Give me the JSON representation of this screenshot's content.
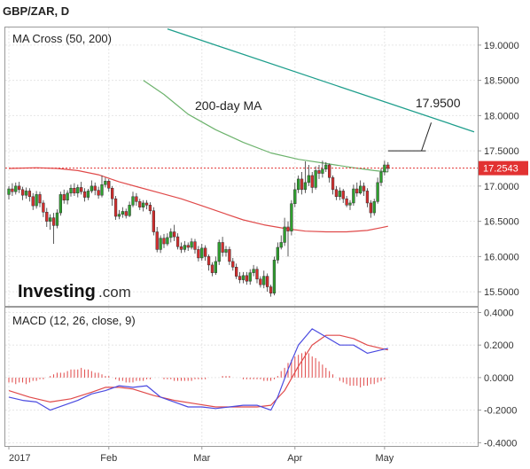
{
  "symbol": "GBP/ZAR, D",
  "logo": {
    "brand": "Investing",
    "suffix": ".com"
  },
  "colors": {
    "up": "#2ea02e",
    "down": "#d62d2d",
    "ma50": "#e04a4a",
    "ma200": "#6db36d",
    "trend": "#1e9e8c",
    "price_tag": "#e23232",
    "macd": "#4a4ae0",
    "signal": "#e04a4a"
  },
  "chart_data": [
    {
      "type": "candlestick",
      "title": "MA Cross (50, 200)",
      "ylim": [
        15.3,
        19.25
      ],
      "yticks": [
        "19.0000",
        "18.5000",
        "18.0000",
        "17.5000",
        "17.0000",
        "16.5000",
        "16.0000",
        "15.5000"
      ],
      "ytick_values": [
        19.0,
        18.5,
        18.0,
        17.5,
        17.0,
        16.5,
        16.0,
        15.5
      ],
      "x_range": [
        0,
        135
      ],
      "xticks": [
        {
          "label": "2017",
          "x": 0
        },
        {
          "label": "Feb",
          "x": 29
        },
        {
          "label": "Mar",
          "x": 56
        },
        {
          "label": "Apr",
          "x": 83
        },
        {
          "label": "May",
          "x": 109
        }
      ],
      "candles": [
        [
          16.88,
          16.96,
          17.0,
          16.81
        ],
        [
          16.96,
          16.92,
          17.04,
          16.86
        ],
        [
          16.92,
          17.0,
          17.05,
          16.88
        ],
        [
          17.0,
          16.95,
          17.06,
          16.9
        ],
        [
          16.95,
          16.87,
          16.99,
          16.8
        ],
        [
          16.87,
          16.93,
          16.98,
          16.82
        ],
        [
          16.93,
          16.85,
          16.97,
          16.78
        ],
        [
          16.85,
          16.72,
          16.9,
          16.66
        ],
        [
          16.72,
          16.88,
          16.93,
          16.68
        ],
        [
          16.88,
          16.76,
          16.92,
          16.7
        ],
        [
          16.76,
          16.63,
          16.8,
          16.56
        ],
        [
          16.63,
          16.5,
          16.69,
          16.42
        ],
        [
          16.5,
          16.55,
          16.6,
          16.38
        ],
        [
          16.55,
          16.44,
          16.62,
          16.18
        ],
        [
          16.44,
          16.62,
          16.67,
          16.4
        ],
        [
          16.62,
          16.88,
          16.92,
          16.58
        ],
        [
          16.88,
          16.8,
          16.95,
          16.75
        ],
        [
          16.8,
          16.9,
          16.94,
          16.74
        ],
        [
          16.9,
          16.97,
          17.02,
          16.85
        ],
        [
          16.97,
          16.9,
          17.04,
          16.86
        ],
        [
          16.9,
          16.98,
          17.02,
          16.84
        ],
        [
          16.98,
          16.92,
          17.06,
          16.88
        ],
        [
          16.92,
          16.84,
          16.97,
          16.78
        ],
        [
          16.84,
          16.93,
          16.96,
          16.8
        ],
        [
          16.93,
          17.0,
          17.08,
          16.9
        ],
        [
          17.0,
          16.94,
          17.05,
          16.87
        ],
        [
          16.94,
          16.87,
          16.99,
          16.82
        ],
        [
          16.87,
          17.02,
          17.15,
          16.84
        ],
        [
          17.02,
          17.07,
          17.12,
          16.98
        ],
        [
          17.07,
          16.97,
          17.1,
          16.92
        ],
        [
          16.97,
          16.82,
          17.0,
          16.72
        ],
        [
          16.82,
          16.57,
          16.86,
          16.52
        ],
        [
          16.57,
          16.6,
          16.66,
          16.53
        ],
        [
          16.6,
          16.64,
          16.7,
          16.55
        ],
        [
          16.64,
          16.58,
          16.68,
          16.54
        ],
        [
          16.58,
          16.73,
          16.78,
          16.56
        ],
        [
          16.73,
          16.85,
          16.92,
          16.7
        ],
        [
          16.85,
          16.78,
          16.9,
          16.72
        ],
        [
          16.78,
          16.7,
          16.82,
          16.66
        ],
        [
          16.7,
          16.76,
          16.8,
          16.64
        ],
        [
          16.76,
          16.73,
          16.8,
          16.67
        ],
        [
          16.73,
          16.65,
          16.77,
          16.6
        ],
        [
          16.65,
          16.35,
          16.7,
          16.3
        ],
        [
          16.35,
          16.1,
          16.42,
          16.06
        ],
        [
          16.1,
          16.26,
          16.3,
          16.05
        ],
        [
          16.26,
          16.18,
          16.32,
          16.12
        ],
        [
          16.18,
          16.27,
          16.33,
          16.15
        ],
        [
          16.27,
          16.35,
          16.4,
          16.2
        ],
        [
          16.35,
          16.28,
          16.45,
          16.22
        ],
        [
          16.28,
          16.14,
          16.33,
          16.1
        ],
        [
          16.14,
          16.1,
          16.2,
          16.05
        ],
        [
          16.1,
          16.16,
          16.22,
          16.06
        ],
        [
          16.16,
          16.13,
          16.2,
          16.08
        ],
        [
          16.13,
          16.21,
          16.26,
          16.1
        ],
        [
          16.21,
          16.1,
          16.25,
          16.04
        ],
        [
          16.1,
          15.98,
          16.15,
          15.93
        ],
        [
          15.98,
          16.12,
          16.18,
          15.94
        ],
        [
          16.12,
          16.0,
          16.16,
          15.94
        ],
        [
          16.0,
          15.88,
          16.03,
          15.8
        ],
        [
          15.88,
          15.77,
          15.92,
          15.72
        ],
        [
          15.77,
          15.93,
          16.0,
          15.74
        ],
        [
          15.93,
          16.2,
          16.24,
          15.88
        ],
        [
          16.2,
          16.06,
          16.28,
          16.0
        ],
        [
          16.06,
          16.1,
          16.15,
          16.0
        ],
        [
          16.1,
          15.93,
          16.14,
          15.88
        ],
        [
          15.93,
          15.85,
          15.98,
          15.8
        ],
        [
          15.85,
          15.72,
          15.9,
          15.68
        ],
        [
          15.72,
          15.67,
          15.78,
          15.62
        ],
        [
          15.67,
          15.73,
          15.78,
          15.62
        ],
        [
          15.73,
          15.65,
          15.78,
          15.6
        ],
        [
          15.65,
          15.77,
          15.82,
          15.6
        ],
        [
          15.77,
          15.82,
          15.88,
          15.72
        ],
        [
          15.82,
          15.68,
          15.86,
          15.62
        ],
        [
          15.68,
          15.6,
          15.72,
          15.56
        ],
        [
          15.6,
          15.72,
          15.8,
          15.55
        ],
        [
          15.72,
          15.57,
          15.76,
          15.5
        ],
        [
          15.57,
          15.48,
          15.6,
          15.43
        ],
        [
          15.48,
          15.95,
          16.0,
          15.45
        ],
        [
          15.95,
          16.13,
          16.2,
          15.9
        ],
        [
          16.13,
          16.2,
          16.3,
          16.1
        ],
        [
          16.2,
          16.42,
          16.55,
          16.15
        ],
        [
          16.42,
          16.36,
          16.5,
          16.0
        ],
        [
          16.36,
          16.75,
          16.8,
          16.3
        ],
        [
          16.75,
          16.95,
          17.05,
          16.7
        ],
        [
          16.95,
          17.1,
          17.15,
          16.9
        ],
        [
          17.1,
          16.95,
          17.2,
          16.88
        ],
        [
          16.95,
          17.05,
          17.35,
          16.9
        ],
        [
          17.05,
          17.15,
          17.3,
          17.0
        ],
        [
          17.15,
          16.98,
          17.2,
          16.9
        ],
        [
          16.98,
          17.22,
          17.28,
          16.95
        ],
        [
          17.22,
          17.18,
          17.3,
          17.1
        ],
        [
          17.18,
          17.24,
          17.36,
          17.12
        ],
        [
          17.24,
          17.3,
          17.34,
          17.2
        ],
        [
          17.3,
          17.12,
          17.32,
          17.05
        ],
        [
          17.12,
          16.95,
          17.15,
          16.88
        ],
        [
          16.95,
          16.85,
          17.0,
          16.8
        ],
        [
          16.85,
          16.93,
          16.98,
          16.8
        ],
        [
          16.93,
          16.82,
          16.96,
          16.76
        ],
        [
          16.82,
          16.73,
          16.86,
          16.7
        ],
        [
          16.73,
          16.76,
          16.8,
          16.66
        ],
        [
          16.76,
          16.96,
          17.02,
          16.72
        ],
        [
          16.96,
          16.9,
          17.05,
          16.85
        ],
        [
          16.9,
          17.0,
          17.08,
          16.88
        ],
        [
          17.0,
          16.93,
          17.05,
          16.86
        ],
        [
          16.93,
          16.76,
          16.97,
          16.7
        ],
        [
          16.76,
          16.62,
          16.8,
          16.55
        ],
        [
          16.62,
          16.78,
          16.82,
          16.58
        ],
        [
          16.78,
          17.05,
          17.12,
          16.75
        ],
        [
          17.05,
          17.2,
          17.25,
          17.0
        ],
        [
          17.2,
          17.3,
          17.36,
          17.15
        ],
        [
          17.3,
          17.25,
          17.34,
          17.2
        ]
      ],
      "ma50": [
        [
          0,
          17.25
        ],
        [
          8,
          17.26
        ],
        [
          14,
          17.25
        ],
        [
          20,
          17.22
        ],
        [
          26,
          17.16
        ],
        [
          32,
          17.06
        ],
        [
          38,
          16.98
        ],
        [
          44,
          16.9
        ],
        [
          50,
          16.82
        ],
        [
          56,
          16.72
        ],
        [
          62,
          16.62
        ],
        [
          68,
          16.52
        ],
        [
          74,
          16.45
        ],
        [
          80,
          16.4
        ],
        [
          86,
          16.36
        ],
        [
          92,
          16.35
        ],
        [
          98,
          16.35
        ],
        [
          104,
          16.37
        ],
        [
          108,
          16.41
        ],
        [
          110,
          16.43
        ]
      ],
      "ma200": [
        [
          39,
          18.5
        ],
        [
          45,
          18.3
        ],
        [
          52,
          18.02
        ],
        [
          60,
          17.8
        ],
        [
          68,
          17.62
        ],
        [
          76,
          17.47
        ],
        [
          84,
          17.38
        ],
        [
          92,
          17.32
        ],
        [
          100,
          17.26
        ],
        [
          106,
          17.22
        ],
        [
          110,
          17.2
        ]
      ],
      "trendline": [
        [
          46,
          19.23
        ],
        [
          135,
          17.77
        ]
      ],
      "hline": 17.2543,
      "last_price": "17.2543",
      "annotations": [
        {
          "text": "200-day MA",
          "x": 54,
          "y": 18.08
        },
        {
          "text": "17.9500",
          "x": 118,
          "y": 18.12
        }
      ],
      "callout": {
        "from": [
          110,
          17.5
        ],
        "to": [
          121,
          17.5
        ],
        "tip": [
          121,
          17.95
        ]
      }
    },
    {
      "type": "macd",
      "title": "MACD (12, 26, close, 9)",
      "ylim": [
        -0.42,
        0.43
      ],
      "yticks": [
        "0.4000",
        "0.2000",
        "0.0000",
        "-0.2000",
        "-0.4000"
      ],
      "ytick_values": [
        0.4,
        0.2,
        0.0,
        -0.2,
        -0.4
      ],
      "macd": [
        [
          0,
          -0.12
        ],
        [
          4,
          -0.14
        ],
        [
          8,
          -0.15
        ],
        [
          12,
          -0.2
        ],
        [
          16,
          -0.17
        ],
        [
          20,
          -0.14
        ],
        [
          24,
          -0.1
        ],
        [
          28,
          -0.08
        ],
        [
          32,
          -0.05
        ],
        [
          36,
          -0.06
        ],
        [
          40,
          -0.05
        ],
        [
          44,
          -0.12
        ],
        [
          48,
          -0.15
        ],
        [
          52,
          -0.18
        ],
        [
          56,
          -0.18
        ],
        [
          60,
          -0.19
        ],
        [
          64,
          -0.18
        ],
        [
          68,
          -0.17
        ],
        [
          72,
          -0.17
        ],
        [
          76,
          -0.2
        ],
        [
          78,
          -0.12
        ],
        [
          81,
          0.05
        ],
        [
          84,
          0.2
        ],
        [
          88,
          0.3
        ],
        [
          92,
          0.25
        ],
        [
          96,
          0.2
        ],
        [
          100,
          0.2
        ],
        [
          104,
          0.15
        ],
        [
          108,
          0.17
        ],
        [
          110,
          0.18
        ]
      ],
      "signal": [
        [
          0,
          -0.08
        ],
        [
          6,
          -0.12
        ],
        [
          12,
          -0.15
        ],
        [
          18,
          -0.13
        ],
        [
          24,
          -0.09
        ],
        [
          28,
          -0.06
        ],
        [
          32,
          -0.06
        ],
        [
          36,
          -0.07
        ],
        [
          42,
          -0.11
        ],
        [
          48,
          -0.14
        ],
        [
          54,
          -0.16
        ],
        [
          60,
          -0.18
        ],
        [
          66,
          -0.18
        ],
        [
          72,
          -0.18
        ],
        [
          76,
          -0.17
        ],
        [
          80,
          -0.08
        ],
        [
          84,
          0.07
        ],
        [
          88,
          0.2
        ],
        [
          92,
          0.26
        ],
        [
          96,
          0.26
        ],
        [
          100,
          0.24
        ],
        [
          104,
          0.2
        ],
        [
          108,
          0.18
        ],
        [
          110,
          0.17
        ]
      ],
      "histogram": [
        -0.03,
        -0.03,
        -0.04,
        -0.03,
        -0.03,
        -0.04,
        -0.03,
        -0.02,
        -0.02,
        -0.01,
        -0.01,
        0.0,
        0.01,
        0.02,
        0.03,
        0.03,
        0.03,
        0.04,
        0.05,
        0.05,
        0.05,
        0.06,
        0.05,
        0.05,
        0.04,
        0.03,
        0.03,
        0.02,
        0.01,
        0.01,
        0.0,
        -0.01,
        -0.02,
        -0.02,
        -0.03,
        -0.03,
        -0.03,
        -0.02,
        -0.02,
        -0.02,
        -0.01,
        -0.01,
        0.0,
        0.0,
        0.0,
        -0.01,
        -0.01,
        -0.01,
        -0.02,
        -0.02,
        -0.02,
        -0.02,
        -0.02,
        -0.02,
        -0.01,
        -0.01,
        -0.01,
        -0.01,
        0.0,
        0.0,
        0.0,
        0.0,
        0.01,
        0.01,
        0.01,
        0.0,
        0.0,
        0.0,
        -0.01,
        -0.01,
        -0.01,
        -0.01,
        -0.01,
        -0.01,
        -0.02,
        -0.02,
        -0.02,
        -0.01,
        0.01,
        0.04,
        0.06,
        0.09,
        0.11,
        0.13,
        0.14,
        0.15,
        0.16,
        0.15,
        0.13,
        0.12,
        0.1,
        0.08,
        0.06,
        0.04,
        0.02,
        0.0,
        -0.02,
        -0.03,
        -0.04,
        -0.05,
        -0.05,
        -0.05,
        -0.06,
        -0.05,
        -0.05,
        -0.04,
        -0.04,
        -0.03,
        -0.02,
        -0.01,
        0.0
      ]
    }
  ]
}
